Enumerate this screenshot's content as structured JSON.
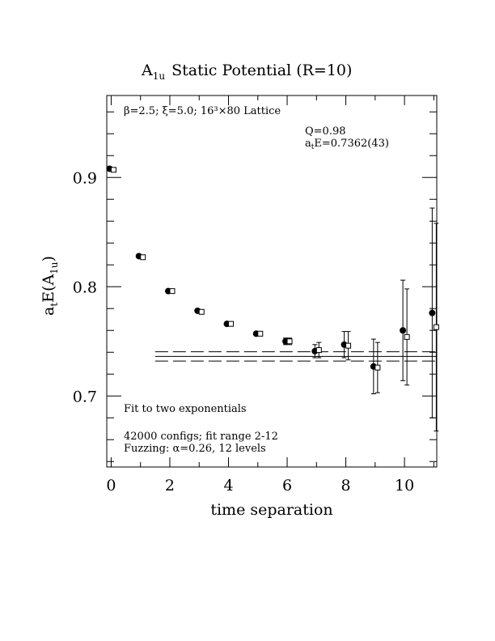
{
  "chart_data": {
    "type": "scatter",
    "title": "Static Potential (R=10)",
    "title_main": "A",
    "title_sub": "1u",
    "xlabel": "time separation",
    "ylabel_main": "a",
    "ylabel_sub_t": "t",
    "ylabel_mid": "E(A",
    "ylabel_sub_1u": "1u",
    "ylabel_end": ")",
    "xlim": [
      -0.15,
      11.1
    ],
    "ylim": [
      0.635,
      0.975
    ],
    "x_ticks": [
      0,
      2,
      4,
      6,
      8,
      10
    ],
    "y_ticks": [
      0.7,
      0.8,
      0.9
    ],
    "x_tick_labels": [
      "0",
      "2",
      "4",
      "6",
      "8",
      "10"
    ],
    "y_tick_labels": [
      "0.7",
      "0.8",
      "0.9"
    ],
    "lattice_label": "β=2.5; ξ=5.0; 16³×80 Lattice",
    "q_label": "Q=0.98",
    "fit_result_main": "a",
    "fit_result_sub": "t",
    "fit_result_rest": "E=0.7362(43)",
    "notes": [
      "Fit to two exponentials",
      "42000 configs; fit range 2-12",
      "Fuzzing: α=0.26, 12 levels"
    ],
    "fit": {
      "value": 0.7362,
      "error": 0.0043,
      "x_start": 1.5,
      "x_end": 11.1
    },
    "series": [
      {
        "marker": "filled-circle",
        "x": [
          0,
          1,
          2,
          3,
          4,
          5,
          6,
          7,
          8,
          9,
          10,
          11
        ],
        "y": [
          0.908,
          0.828,
          0.796,
          0.778,
          0.766,
          0.757,
          0.75,
          0.741,
          0.747,
          0.727,
          0.76,
          0.776
        ],
        "err": [
          0.001,
          0.001,
          0.001,
          0.002,
          0.002,
          0.002,
          0.003,
          0.006,
          0.012,
          0.025,
          0.046,
          0.096
        ]
      },
      {
        "marker": "open-square",
        "x": [
          0,
          1,
          2,
          3,
          4,
          5,
          6,
          7,
          8,
          9,
          10,
          11
        ],
        "y": [
          0.907,
          0.827,
          0.796,
          0.777,
          0.766,
          0.757,
          0.75,
          0.742,
          0.746,
          0.726,
          0.754,
          0.763
        ],
        "err": [
          0.001,
          0.001,
          0.001,
          0.002,
          0.002,
          0.002,
          0.003,
          0.007,
          0.013,
          0.023,
          0.044,
          0.095
        ]
      }
    ]
  }
}
